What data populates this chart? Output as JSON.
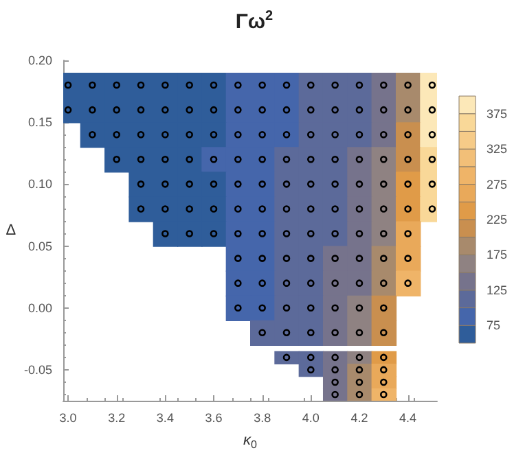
{
  "chart_data": {
    "type": "scatter",
    "title": "Γω$^{2}$",
    "xlabel": "κ$_{0}$",
    "ylabel": "Δ",
    "xlim": [
      2.98,
      4.52
    ],
    "xticks": [
      {
        "value": 3.0,
        "label": "3.0"
      },
      {
        "value": 3.2,
        "label": "3.2"
      },
      {
        "value": 3.4,
        "label": "3.4"
      },
      {
        "value": 3.6,
        "label": "3.6"
      },
      {
        "value": 3.8,
        "label": "3.8"
      },
      {
        "value": 4.0,
        "label": "4.0"
      },
      {
        "value": 4.2,
        "label": "4.2"
      },
      {
        "value": 4.4,
        "label": "4.4"
      }
    ],
    "ylim": [
      -0.075,
      0.2
    ],
    "yticks": [
      {
        "value": -0.05,
        "label": "-0.05"
      },
      {
        "value": 0,
        "label": "0.00"
      },
      {
        "value": 0.05,
        "label": "0.05"
      },
      {
        "value": 0.1,
        "label": "0.10"
      },
      {
        "value": 0.15,
        "label": "0.15"
      },
      {
        "value": 0.2,
        "label": "0.20"
      }
    ],
    "clim": [
      50,
      400
    ],
    "cticks": [
      75,
      125,
      175,
      225,
      275,
      325,
      375
    ],
    "marker": "circle",
    "grid": false,
    "series": [
      {
        "color": "#000000",
        "x": [
          3.0,
          3.1,
          3.2,
          3.3,
          3.4,
          3.5,
          3.6,
          3.7,
          3.8,
          3.9,
          4.0,
          4.1,
          4.2,
          4.3,
          4.4,
          4.5
        ],
        "values": [
          0.18,
          0.18,
          0.18,
          0.18,
          0.18,
          0.18,
          0.18,
          0.18,
          0.18,
          0.18,
          0.18,
          0.18,
          0.18,
          0.18,
          0.18,
          0.18
        ],
        "cvalues": [
          62,
          62,
          62,
          62,
          62,
          63,
          72,
          88,
          90,
          92,
          105,
          112,
          120,
          140,
          185,
          385
        ]
      },
      {
        "color": "#000000",
        "x": [
          3.0,
          3.1,
          3.2,
          3.3,
          3.4,
          3.5,
          3.6,
          3.7,
          3.8,
          3.9,
          4.0,
          4.1,
          4.2,
          4.3,
          4.4,
          4.5
        ],
        "values": [
          0.16,
          0.16,
          0.16,
          0.16,
          0.16,
          0.16,
          0.16,
          0.16,
          0.16,
          0.16,
          0.16,
          0.16,
          0.16,
          0.16,
          0.16,
          0.16
        ],
        "cvalues": [
          62,
          62,
          62,
          62,
          62,
          63,
          70,
          88,
          90,
          94,
          108,
          115,
          122,
          142,
          190,
          380
        ]
      },
      {
        "color": "#000000",
        "x": [
          3.1,
          3.2,
          3.3,
          3.4,
          3.5,
          3.6,
          3.7,
          3.8,
          3.9,
          4.0,
          4.1,
          4.2,
          4.3,
          4.4,
          4.5
        ],
        "values": [
          0.14,
          0.14,
          0.14,
          0.14,
          0.14,
          0.14,
          0.14,
          0.14,
          0.14,
          0.14,
          0.14,
          0.14,
          0.14,
          0.14,
          0.14
        ],
        "cvalues": [
          62,
          62,
          62,
          63,
          64,
          72,
          88,
          90,
          95,
          108,
          115,
          124,
          145,
          200,
          375
        ]
      },
      {
        "color": "#000000",
        "x": [
          3.2,
          3.3,
          3.4,
          3.5,
          3.6,
          3.7,
          3.8,
          3.9,
          4.0,
          4.1,
          4.2,
          4.3,
          4.4,
          4.5
        ],
        "values": [
          0.12,
          0.12,
          0.12,
          0.12,
          0.12,
          0.12,
          0.12,
          0.12,
          0.12,
          0.12,
          0.12,
          0.12,
          0.12,
          0.12
        ],
        "cvalues": [
          62,
          63,
          63,
          65,
          76,
          88,
          92,
          104,
          110,
          118,
          128,
          150,
          215,
          370
        ]
      },
      {
        "color": "#000000",
        "x": [
          3.3,
          3.4,
          3.5,
          3.6,
          3.7,
          3.8,
          3.9,
          4.0,
          4.1,
          4.2,
          4.3,
          4.4,
          4.5
        ],
        "values": [
          0.1,
          0.1,
          0.1,
          0.1,
          0.1,
          0.1,
          0.1,
          0.1,
          0.1,
          0.1,
          0.1,
          0.1,
          0.1
        ],
        "cvalues": [
          63,
          64,
          66,
          72,
          88,
          95,
          102,
          112,
          120,
          132,
          160,
          230,
          365
        ]
      },
      {
        "color": "#000000",
        "x": [
          3.3,
          3.4,
          3.5,
          3.6,
          3.7,
          3.8,
          3.9,
          4.0,
          4.1,
          4.2,
          4.3,
          4.4,
          4.5
        ],
        "values": [
          0.08,
          0.08,
          0.08,
          0.08,
          0.08,
          0.08,
          0.08,
          0.08,
          0.08,
          0.08,
          0.08,
          0.08,
          0.08
        ],
        "cvalues": [
          63,
          64,
          66,
          73,
          88,
          95,
          102,
          112,
          122,
          135,
          165,
          245,
          360
        ]
      },
      {
        "color": "#000000",
        "x": [
          3.4,
          3.5,
          3.6,
          3.7,
          3.8,
          3.9,
          4.0,
          4.1,
          4.2,
          4.3,
          4.4
        ],
        "values": [
          0.06,
          0.06,
          0.06,
          0.06,
          0.06,
          0.06,
          0.06,
          0.06,
          0.06,
          0.06,
          0.06
        ],
        "cvalues": [
          65,
          67,
          74,
          88,
          97,
          104,
          114,
          124,
          138,
          172,
          260
        ]
      },
      {
        "color": "#000000",
        "x": [
          3.7,
          3.8,
          3.9,
          4.0,
          4.1,
          4.2,
          4.3,
          4.4
        ],
        "values": [
          0.04,
          0.04,
          0.04,
          0.04,
          0.04,
          0.04,
          0.04,
          0.04
        ],
        "cvalues": [
          88,
          96,
          104,
          115,
          126,
          142,
          180,
          270
        ]
      },
      {
        "color": "#000000",
        "x": [
          3.7,
          3.8,
          3.9,
          4.0,
          4.1,
          4.2,
          4.3,
          4.4
        ],
        "values": [
          0.02,
          0.02,
          0.02,
          0.02,
          0.02,
          0.02,
          0.02,
          0.02
        ],
        "cvalues": [
          88,
          96,
          106,
          116,
          128,
          146,
          190,
          285
        ]
      },
      {
        "color": "#000000",
        "x": [
          3.7,
          3.8,
          3.9,
          4.0,
          4.1,
          4.2,
          4.3
        ],
        "values": [
          0,
          0,
          0,
          0,
          0,
          0,
          0
        ],
        "cvalues": [
          90,
          98,
          108,
          118,
          130,
          150,
          200
        ]
      },
      {
        "color": "#000000",
        "x": [
          3.8,
          3.9,
          4.0,
          4.1,
          4.2,
          4.3
        ],
        "values": [
          -0.02,
          -0.02,
          -0.02,
          -0.02,
          -0.02,
          -0.02
        ],
        "cvalues": [
          100,
          108,
          120,
          132,
          158,
          215
        ]
      },
      {
        "color": "#000000",
        "x": [
          3.9,
          4.0,
          4.1,
          4.2,
          4.3
        ],
        "values": [
          -0.04,
          -0.04,
          -0.04,
          -0.04,
          -0.04
        ],
        "cvalues": [
          105,
          112,
          125,
          165,
          230
        ]
      },
      {
        "color": "#000000",
        "x": [
          4.0,
          4.1,
          4.2,
          4.3
        ],
        "values": [
          -0.05,
          -0.05,
          -0.05,
          -0.05
        ],
        "cvalues": [
          115,
          130,
          175,
          250
        ]
      },
      {
        "color": "#000000",
        "x": [
          4.1,
          4.2,
          4.3
        ],
        "values": [
          -0.06,
          -0.06,
          -0.06
        ],
        "cvalues": [
          135,
          185,
          270
        ]
      },
      {
        "color": "#000000",
        "x": [
          4.1,
          4.2,
          4.3
        ],
        "values": [
          -0.07,
          -0.07,
          -0.07
        ],
        "cvalues": [
          140,
          195,
          290
        ]
      }
    ]
  }
}
